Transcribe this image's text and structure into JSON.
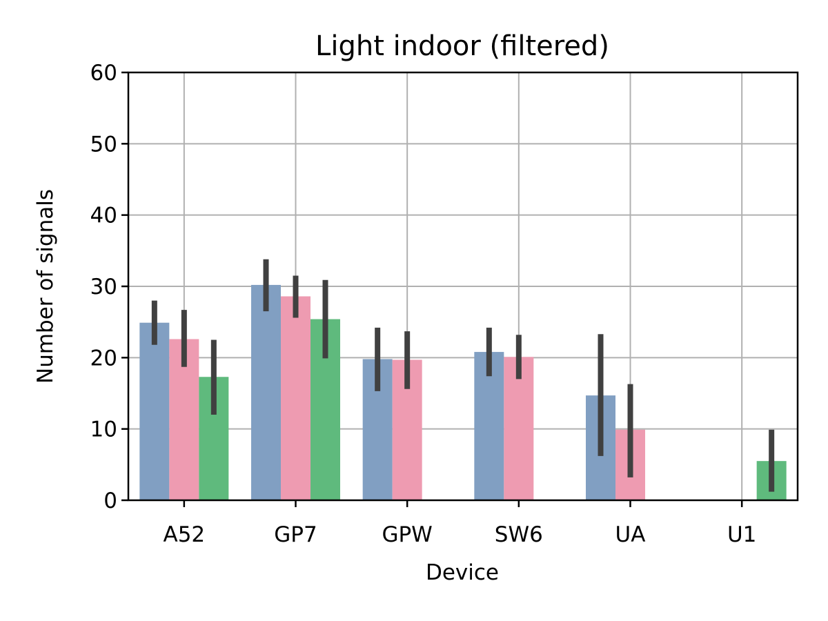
{
  "chart_data": {
    "type": "bar",
    "title": "Light indoor (filtered)",
    "xlabel": "Device",
    "ylabel": "Number of signals",
    "categories": [
      "A52",
      "GP7",
      "GPW",
      "SW6",
      "UA",
      "U1"
    ],
    "ylim": [
      0,
      60
    ],
    "yticks": [
      0,
      10,
      20,
      30,
      40,
      50,
      60
    ],
    "grid": true,
    "legend": "none",
    "series": [
      {
        "color": "#819fc2",
        "values": [
          24.9,
          30.2,
          19.8,
          20.8,
          14.7,
          null
        ],
        "error_low": [
          21.8,
          26.5,
          15.3,
          17.4,
          6.2,
          null
        ],
        "error_high": [
          28.0,
          33.8,
          24.2,
          24.2,
          23.3,
          null
        ]
      },
      {
        "color": "#ee9bb1",
        "values": [
          22.6,
          28.6,
          19.7,
          20.1,
          9.9,
          null
        ],
        "error_low": [
          18.7,
          25.6,
          15.6,
          17.0,
          3.2,
          null
        ],
        "error_high": [
          26.7,
          31.5,
          23.7,
          23.2,
          16.3,
          null
        ]
      },
      {
        "color": "#5fba7d",
        "values": [
          17.3,
          25.4,
          null,
          null,
          null,
          5.5
        ],
        "error_low": [
          12.0,
          19.9,
          null,
          null,
          null,
          1.2
        ],
        "error_high": [
          22.5,
          30.9,
          null,
          null,
          null,
          9.9
        ]
      }
    ],
    "error_bar_color": "#404040"
  }
}
